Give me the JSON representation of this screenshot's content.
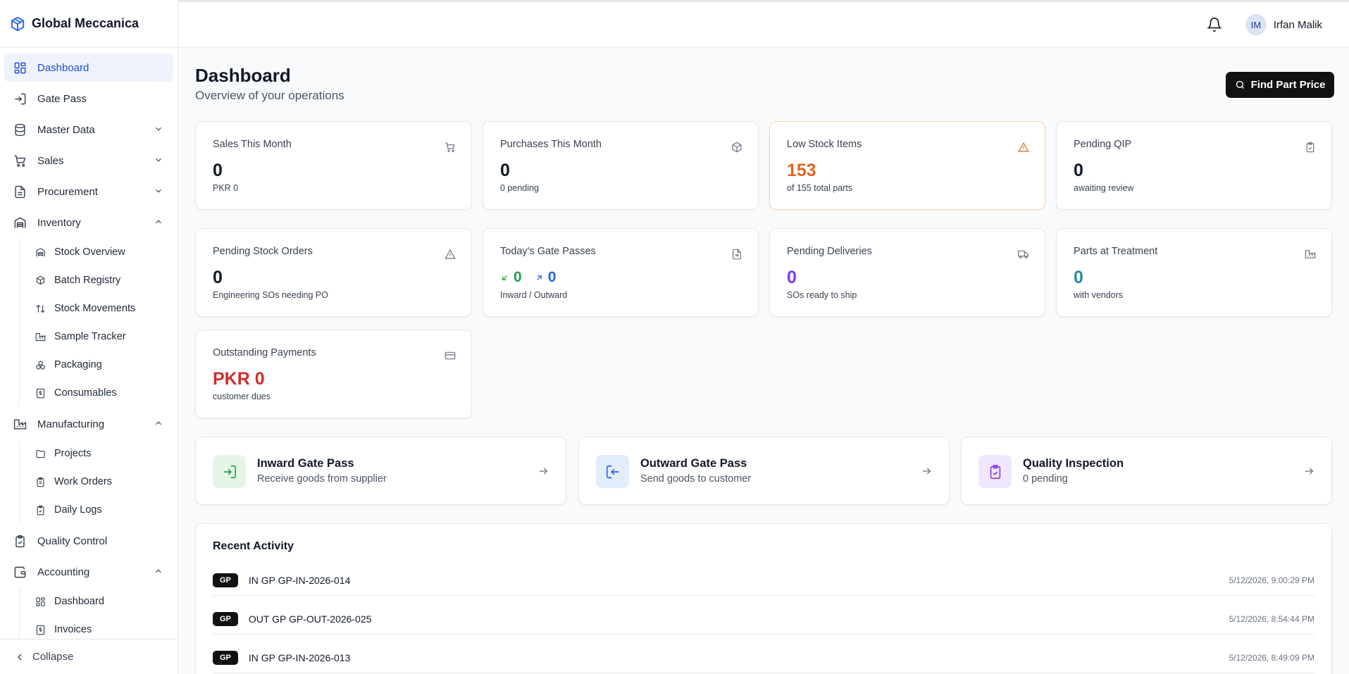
{
  "brand": {
    "name": "Global Meccanica"
  },
  "header": {
    "user_initials": "IM",
    "user_name": "Irfan Malik"
  },
  "sidebar": {
    "items": [
      {
        "label": "Dashboard",
        "icon": "dashboard-icon",
        "active": true
      },
      {
        "label": "Gate Pass",
        "icon": "gate-pass-icon"
      },
      {
        "label": "Master Data",
        "icon": "database-icon",
        "expanded": false
      },
      {
        "label": "Sales",
        "icon": "cart-icon",
        "expanded": false
      },
      {
        "label": "Procurement",
        "icon": "document-icon",
        "expanded": false
      },
      {
        "label": "Inventory",
        "icon": "warehouse-icon",
        "expanded": true,
        "children": [
          "Stock Overview",
          "Batch Registry",
          "Stock Movements",
          "Sample Tracker",
          "Packaging",
          "Consumables"
        ]
      },
      {
        "label": "Manufacturing",
        "icon": "factory-icon",
        "expanded": true,
        "children": [
          "Projects",
          "Work Orders",
          "Daily Logs"
        ]
      },
      {
        "label": "Quality Control",
        "icon": "clipboard-check-icon"
      },
      {
        "label": "Accounting",
        "icon": "wallet-icon",
        "expanded": true,
        "children": [
          "Dashboard",
          "Invoices"
        ]
      }
    ],
    "collapse_label": "Collapse"
  },
  "page": {
    "title": "Dashboard",
    "subtitle": "Overview of your operations",
    "find_button": "Find Part Price"
  },
  "stats": [
    {
      "label": "Sales This Month",
      "value": "0",
      "desc": "PKR 0",
      "icon": "cart-icon"
    },
    {
      "label": "Purchases This Month",
      "value": "0",
      "desc": "0 pending",
      "icon": "package-icon"
    },
    {
      "label": "Low Stock Items",
      "value": "153",
      "desc": "of 155 total parts",
      "icon": "warning-icon",
      "color": "#e0661c"
    },
    {
      "label": "Pending QIP",
      "value": "0",
      "desc": "awaiting review",
      "icon": "clipboard-icon"
    },
    {
      "label": "Pending Stock Orders",
      "value": "0",
      "desc": "Engineering SOs needing PO",
      "icon": "warning-icon"
    },
    {
      "label": "Today's Gate Passes",
      "inward": "0",
      "outward": "0",
      "desc": "Inward / Outward",
      "icon": "gate-in-icon"
    },
    {
      "label": "Pending Deliveries",
      "value": "0",
      "desc": "SOs ready to ship",
      "icon": "truck-icon",
      "color": "#7c3aed"
    },
    {
      "label": "Parts at Treatment",
      "value": "0",
      "desc": "with vendors",
      "icon": "factory-icon",
      "color": "#2b8aa8"
    },
    {
      "label": "Outstanding Payments",
      "value": "PKR 0",
      "desc": "customer dues",
      "icon": "credit-card-icon",
      "color": "#d12c2c"
    }
  ],
  "quick_actions": [
    {
      "title": "Inward Gate Pass",
      "sub": "Receive goods from supplier",
      "icon": "login-icon",
      "bg": "#e3f6e8",
      "fg": "#22a04b"
    },
    {
      "title": "Outward Gate Pass",
      "sub": "Send goods to customer",
      "icon": "logout-icon",
      "bg": "#e3ecfb",
      "fg": "#2563eb"
    },
    {
      "title": "Quality Inspection",
      "sub": "0 pending",
      "icon": "clipboard-check-icon",
      "bg": "#f1e7fc",
      "fg": "#8b3ddf"
    }
  ],
  "activity": {
    "title": "Recent Activity",
    "rows": [
      {
        "badge": "GP",
        "text": "IN GP GP-IN-2026-014",
        "time": "5/12/2026, 9:00:29 PM"
      },
      {
        "badge": "GP",
        "text": "OUT GP GP-OUT-2026-025",
        "time": "5/12/2026, 8:54:44 PM"
      },
      {
        "badge": "GP",
        "text": "IN GP GP-IN-2026-013",
        "time": "5/12/2026, 8:49:09 PM"
      }
    ]
  }
}
